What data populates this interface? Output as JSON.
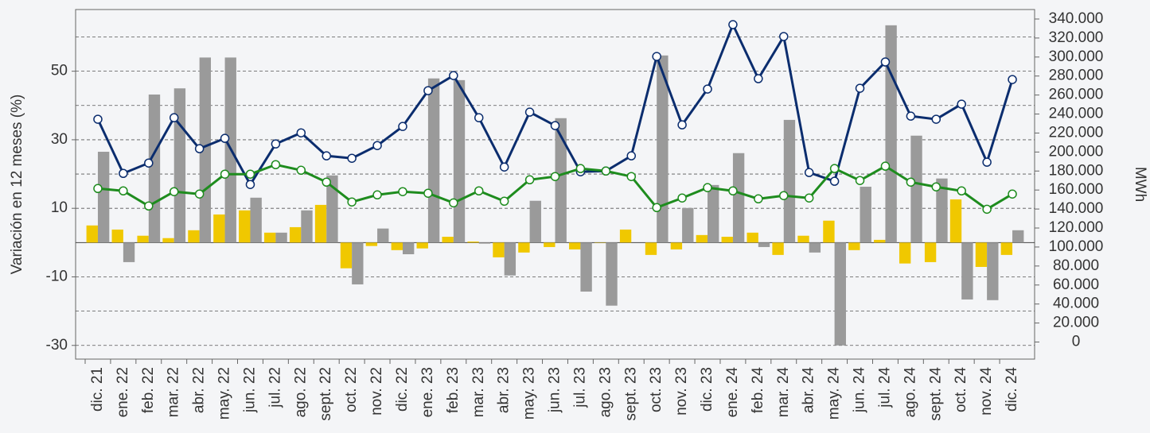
{
  "chart_data": {
    "type": "bar",
    "y_label": "Variación en 12 meses (%)",
    "y2_label": "MWh",
    "categories": [
      "dic. 21",
      "ene. 22",
      "feb. 22",
      "mar. 22",
      "abr. 22",
      "may. 22",
      "jun. 22",
      "jul. 22",
      "ago. 22",
      "sept. 22",
      "oct. 22",
      "nov. 22",
      "dic. 22",
      "ene. 23",
      "feb. 23",
      "mar. 23",
      "abr. 23",
      "may. 23",
      "jun. 23",
      "jul. 23",
      "ago. 23",
      "sept. 23",
      "oct. 23",
      "nov. 23",
      "dic. 23",
      "ene. 24",
      "feb. 24",
      "mar. 24",
      "abr. 24",
      "may. 24",
      "jun. 24",
      "jul. 24",
      "ago. 24",
      "sept. 24",
      "oct. 24",
      "nov. 24",
      "dic. 24"
    ],
    "series": [
      {
        "kind": "bar",
        "color": "#f0c800",
        "values": [
          5.0,
          3.8,
          2.0,
          1.3,
          3.6,
          8.2,
          9.4,
          2.9,
          4.5,
          11.0,
          -7.5,
          -1.0,
          -2.2,
          -1.7,
          1.7,
          0.3,
          -4.3,
          -2.9,
          -1.3,
          -2.0,
          -0.1,
          3.8,
          -3.6,
          -2.0,
          2.2,
          1.7,
          2.9,
          -3.6,
          2.0,
          6.4,
          -2.2,
          0.8,
          -6.1,
          -5.7,
          12.6,
          -7.1,
          -3.6
        ]
      },
      {
        "kind": "bar",
        "color": "#9a9a9a",
        "values": [
          26.5,
          -5.7,
          43.2,
          45.0,
          54.0,
          54.0,
          13.1,
          2.9,
          9.4,
          19.6,
          -12.2,
          4.1,
          -3.4,
          47.9,
          47.4,
          -0.3,
          -9.6,
          12.2,
          36.3,
          -14.3,
          -18.4,
          0,
          54.6,
          10.1,
          16.8,
          26.1,
          -1.3,
          35.8,
          -2.9,
          -30.0,
          16.3,
          63.4,
          31.2,
          18.7,
          -16.6,
          -16.8,
          3.6
        ]
      },
      {
        "kind": "line",
        "axis": "y2",
        "color": "#0b2d6e",
        "values": [
          234500,
          177500,
          188400,
          236100,
          203500,
          214400,
          165800,
          208500,
          220200,
          196000,
          193400,
          206800,
          226900,
          264600,
          280500,
          236100,
          184200,
          242000,
          227800,
          179200,
          180000,
          196000,
          300600,
          228600,
          266300,
          334100,
          277200,
          321600,
          178400,
          169200,
          267100,
          294800,
          237800,
          234500,
          250400,
          189300,
          276300
        ]
      },
      {
        "kind": "line",
        "axis": "y2",
        "color": "#1e8c1e",
        "values": [
          161600,
          159100,
          143200,
          158300,
          155800,
          176700,
          176700,
          186700,
          180800,
          168300,
          147400,
          154900,
          158300,
          156600,
          146500,
          159100,
          148200,
          170800,
          174200,
          182600,
          180000,
          174200,
          141500,
          151600,
          162500,
          159100,
          150700,
          154100,
          151600,
          182600,
          170000,
          185100,
          168300,
          163300,
          159100,
          139800,
          155800
        ]
      }
    ],
    "ylim": [
      -34,
      68
    ],
    "yticks": [
      -30,
      -10,
      10,
      30,
      50
    ],
    "ygrid": [
      -30,
      -20,
      -10,
      10,
      20,
      30,
      40,
      50,
      60
    ],
    "y2lim": [
      -18000,
      350000
    ],
    "y2ticks": [
      0,
      {
        "value": 20000,
        "label": "20.000"
      },
      {
        "value": 40000,
        "label": "40.000"
      },
      {
        "value": 60000,
        "label": "60.000"
      },
      {
        "value": 80000,
        "label": "80.000"
      },
      {
        "value": 100000,
        "label": "100.000"
      },
      {
        "value": 120000,
        "label": "120.000"
      },
      {
        "value": 140000,
        "label": "140.000"
      },
      {
        "value": 160000,
        "label": "160.000"
      },
      {
        "value": 180000,
        "label": "180.000"
      },
      {
        "value": 200000,
        "label": "200.000"
      },
      {
        "value": 220000,
        "label": "220.000"
      },
      {
        "value": 240000,
        "label": "240.000"
      },
      {
        "value": 260000,
        "label": "260.000"
      },
      {
        "value": 280000,
        "label": "280.000"
      },
      {
        "value": 300000,
        "label": "300.000"
      },
      {
        "value": 320000,
        "label": "320.000"
      },
      {
        "value": 340000,
        "label": "340.000"
      }
    ],
    "grid": true
  }
}
